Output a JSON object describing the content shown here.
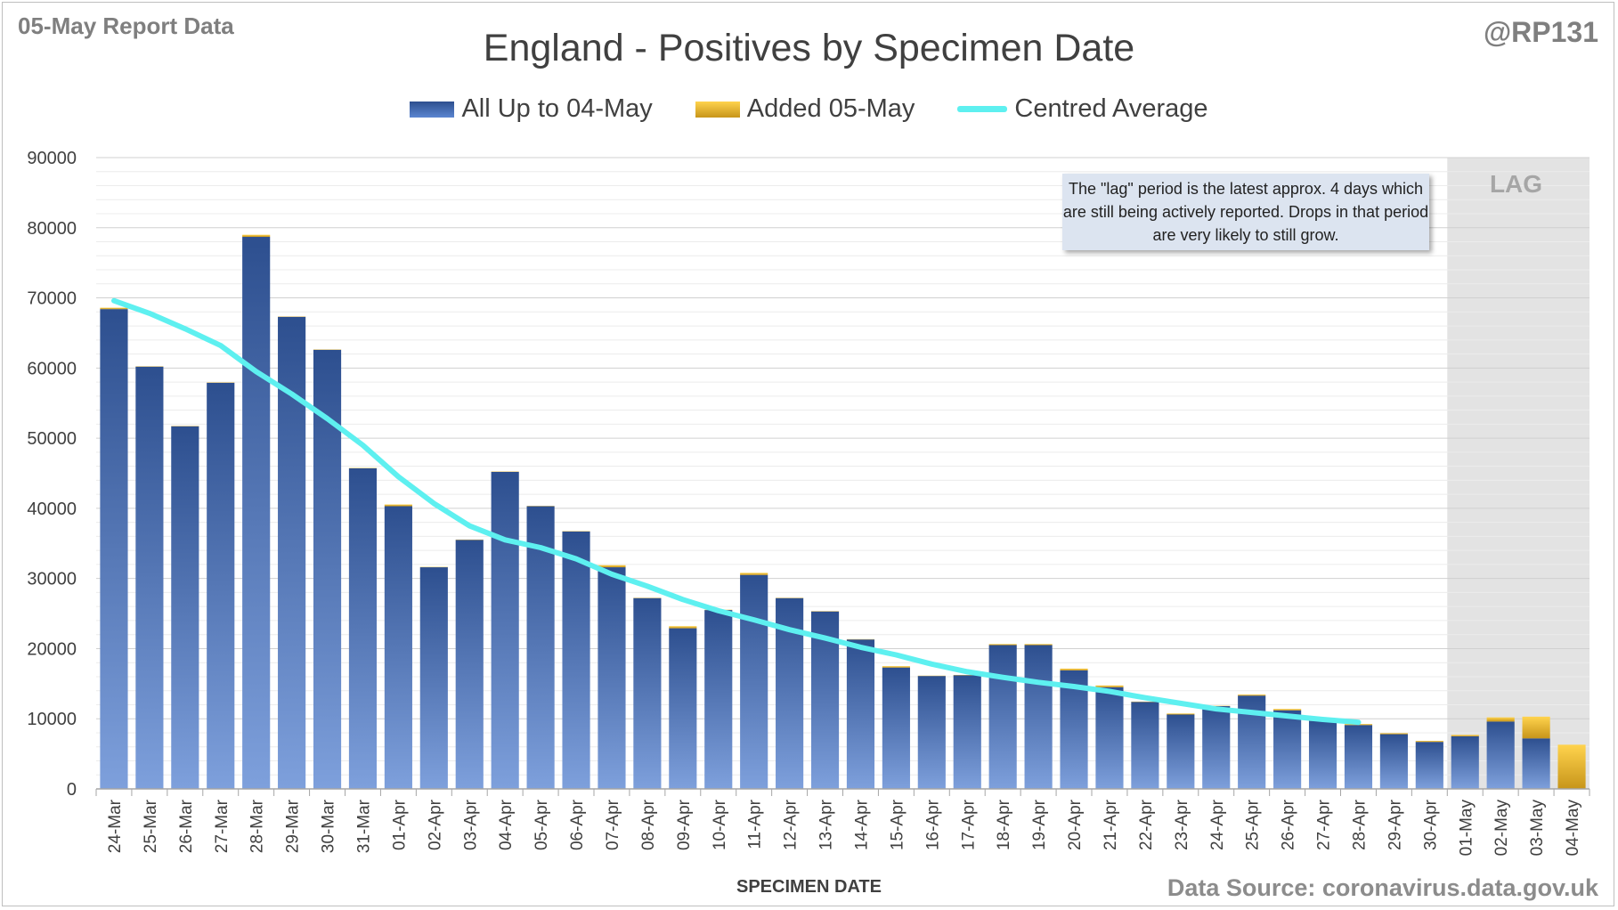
{
  "header": {
    "report_label": "05-May Report Data",
    "handle": "@RP131",
    "title": "England - Positives by Specimen Date"
  },
  "legend": {
    "base_label": "All Up to 04-May",
    "added_label": "Added 05-May",
    "avg_label": "Centred Average"
  },
  "annotation": {
    "lag_note": "The \"lag\" period is the latest approx. 4 days which are still being actively reported. Drops in that period are very likely to still grow.",
    "lag_label": "LAG"
  },
  "footer": {
    "x_axis_title": "SPECIMEN DATE",
    "source": "Data Source: coronavirus.data.gov.uk"
  },
  "colors": {
    "base_top": "#2d4f8f",
    "base_bottom": "#7ea0dc",
    "added_top": "#ffd34d",
    "added_bottom": "#c7951a",
    "average_line": "#5ef0f0",
    "lag_shade": "#e3e3e3"
  },
  "chart_data": {
    "type": "bar",
    "stacked": true,
    "title": "England - Positives by Specimen Date",
    "xlabel": "SPECIMEN DATE",
    "ylabel": "",
    "ylim": [
      0,
      90000
    ],
    "yticks": [
      0,
      10000,
      20000,
      30000,
      40000,
      50000,
      60000,
      70000,
      80000,
      90000
    ],
    "grid": true,
    "legend_position": "top",
    "categories": [
      "24-Mar",
      "25-Mar",
      "26-Mar",
      "27-Mar",
      "28-Mar",
      "29-Mar",
      "30-Mar",
      "31-Mar",
      "01-Apr",
      "02-Apr",
      "03-Apr",
      "04-Apr",
      "05-Apr",
      "06-Apr",
      "07-Apr",
      "08-Apr",
      "09-Apr",
      "10-Apr",
      "11-Apr",
      "12-Apr",
      "13-Apr",
      "14-Apr",
      "15-Apr",
      "16-Apr",
      "17-Apr",
      "18-Apr",
      "19-Apr",
      "20-Apr",
      "21-Apr",
      "22-Apr",
      "23-Apr",
      "24-Apr",
      "25-Apr",
      "26-Apr",
      "27-Apr",
      "28-Apr",
      "29-Apr",
      "30-Apr",
      "01-May",
      "02-May",
      "03-May",
      "04-May"
    ],
    "series": [
      {
        "name": "All Up to 04-May",
        "kind": "bar",
        "values": [
          68400,
          60200,
          51700,
          57900,
          78700,
          67300,
          62600,
          45700,
          40300,
          31600,
          35500,
          45200,
          40300,
          36700,
          31600,
          27200,
          22900,
          25500,
          30500,
          27200,
          25300,
          21300,
          17300,
          16100,
          16200,
          20500,
          20500,
          16900,
          14500,
          12400,
          10600,
          11800,
          13300,
          11200,
          9700,
          9100,
          7800,
          6700,
          7500,
          9600,
          7200,
          0
        ]
      },
      {
        "name": "Added 05-May",
        "kind": "bar",
        "values": [
          200,
          50,
          50,
          50,
          300,
          50,
          50,
          50,
          250,
          50,
          50,
          50,
          50,
          50,
          300,
          50,
          300,
          50,
          300,
          50,
          50,
          50,
          200,
          50,
          50,
          150,
          150,
          250,
          250,
          50,
          150,
          50,
          150,
          200,
          150,
          150,
          150,
          150,
          200,
          600,
          3100,
          6300
        ]
      },
      {
        "name": "Centred Average",
        "kind": "line",
        "values": [
          69600,
          67800,
          65600,
          63200,
          59500,
          56300,
          52800,
          49000,
          44500,
          40700,
          37500,
          35500,
          34400,
          32800,
          30600,
          28900,
          27000,
          25400,
          24100,
          22700,
          21500,
          20200,
          19100,
          17800,
          16700,
          15900,
          15200,
          14600,
          13900,
          13000,
          12200,
          11400,
          10900,
          10400,
          9900,
          9500,
          null,
          null,
          null,
          null,
          null,
          null
        ]
      }
    ],
    "lag_region": [
      "01-May",
      "02-May",
      "03-May",
      "04-May"
    ]
  }
}
